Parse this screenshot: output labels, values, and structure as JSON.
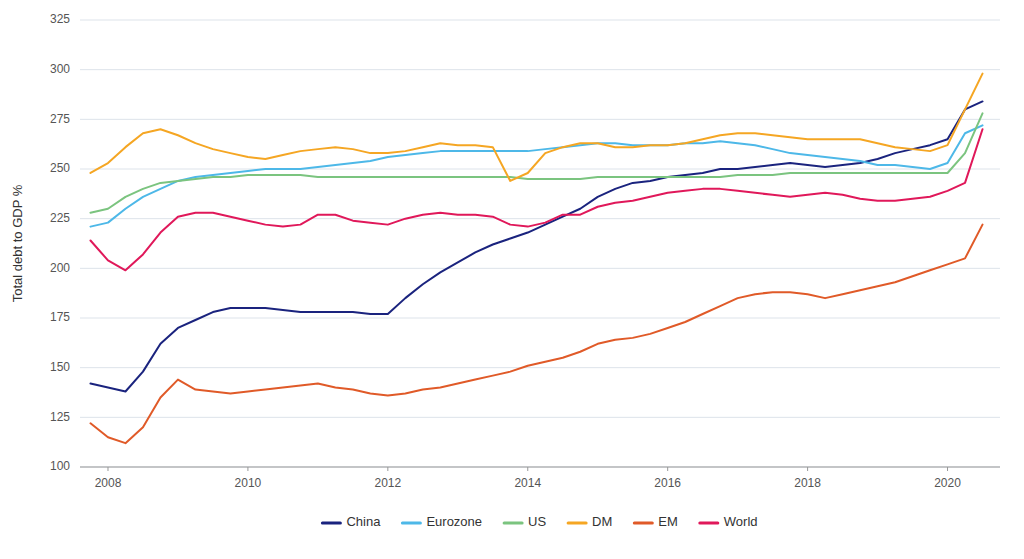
{
  "chart_data": {
    "type": "line",
    "y_label": "Total debt to GDP %",
    "xlim": [
      2007.6,
      2020.75
    ],
    "xticks": [
      2008,
      2010,
      2012,
      2014,
      2016,
      2018,
      2020
    ],
    "ylim": [
      100,
      325
    ],
    "yticks": [
      100,
      125,
      150,
      175,
      200,
      225,
      250,
      275,
      300,
      325
    ],
    "grid": true,
    "legend": "bottom",
    "x": [
      2007.75,
      2008.0,
      2008.25,
      2008.5,
      2008.75,
      2009.0,
      2009.25,
      2009.5,
      2009.75,
      2010.0,
      2010.25,
      2010.5,
      2010.75,
      2011.0,
      2011.25,
      2011.5,
      2011.75,
      2012.0,
      2012.25,
      2012.5,
      2012.75,
      2013.0,
      2013.25,
      2013.5,
      2013.75,
      2014.0,
      2014.25,
      2014.5,
      2014.75,
      2015.0,
      2015.25,
      2015.5,
      2015.75,
      2016.0,
      2016.25,
      2016.5,
      2016.75,
      2017.0,
      2017.25,
      2017.5,
      2017.75,
      2018.0,
      2018.25,
      2018.5,
      2018.75,
      2019.0,
      2019.25,
      2019.5,
      2019.75,
      2020.0,
      2020.25,
      2020.5
    ],
    "series": [
      {
        "name": "China",
        "color": "#1a237e",
        "values": [
          142,
          140,
          138,
          148,
          162,
          170,
          174,
          178,
          180,
          180,
          180,
          179,
          178,
          178,
          178,
          178,
          177,
          177,
          185,
          192,
          198,
          203,
          208,
          212,
          215,
          218,
          222,
          226,
          230,
          236,
          240,
          243,
          244,
          246,
          247,
          248,
          250,
          250,
          251,
          252,
          253,
          252,
          251,
          252,
          253,
          255,
          258,
          260,
          262,
          265,
          280,
          284
        ]
      },
      {
        "name": "Eurozone",
        "color": "#4db8e8",
        "values": [
          221,
          223,
          230,
          236,
          240,
          244,
          246,
          247,
          248,
          249,
          250,
          250,
          250,
          251,
          252,
          253,
          254,
          256,
          257,
          258,
          259,
          259,
          259,
          259,
          259,
          259,
          260,
          261,
          262,
          263,
          263,
          262,
          262,
          262,
          263,
          263,
          264,
          263,
          262,
          260,
          258,
          257,
          256,
          255,
          254,
          252,
          252,
          251,
          250,
          253,
          268,
          272
        ]
      },
      {
        "name": "US",
        "color": "#7bc47f",
        "values": [
          228,
          230,
          236,
          240,
          243,
          244,
          245,
          246,
          246,
          247,
          247,
          247,
          247,
          246,
          246,
          246,
          246,
          246,
          246,
          246,
          246,
          246,
          246,
          246,
          246,
          245,
          245,
          245,
          245,
          246,
          246,
          246,
          246,
          246,
          246,
          246,
          246,
          247,
          247,
          247,
          248,
          248,
          248,
          248,
          248,
          248,
          248,
          248,
          248,
          248,
          258,
          278
        ]
      },
      {
        "name": "DM",
        "color": "#f5a623",
        "values": [
          248,
          253,
          261,
          268,
          270,
          267,
          263,
          260,
          258,
          256,
          255,
          257,
          259,
          260,
          261,
          260,
          258,
          258,
          259,
          261,
          263,
          262,
          262,
          261,
          244,
          248,
          258,
          261,
          263,
          263,
          261,
          261,
          262,
          262,
          263,
          265,
          267,
          268,
          268,
          267,
          266,
          265,
          265,
          265,
          265,
          263,
          261,
          260,
          259,
          262,
          280,
          298
        ]
      },
      {
        "name": "EM",
        "color": "#e05a28",
        "values": [
          122,
          115,
          112,
          120,
          135,
          144,
          139,
          138,
          137,
          138,
          139,
          140,
          141,
          142,
          140,
          139,
          137,
          136,
          137,
          139,
          140,
          142,
          144,
          146,
          148,
          151,
          153,
          155,
          158,
          162,
          164,
          165,
          167,
          170,
          173,
          177,
          181,
          185,
          187,
          188,
          188,
          187,
          185,
          187,
          189,
          191,
          193,
          196,
          199,
          202,
          205,
          222
        ]
      },
      {
        "name": "World",
        "color": "#e0185a",
        "values": [
          214,
          204,
          199,
          207,
          218,
          226,
          228,
          228,
          226,
          224,
          222,
          221,
          222,
          227,
          227,
          224,
          223,
          222,
          225,
          227,
          228,
          227,
          227,
          226,
          222,
          221,
          223,
          227,
          227,
          231,
          233,
          234,
          236,
          238,
          239,
          240,
          240,
          239,
          238,
          237,
          236,
          237,
          238,
          237,
          235,
          234,
          234,
          235,
          236,
          239,
          243,
          270
        ]
      }
    ]
  }
}
